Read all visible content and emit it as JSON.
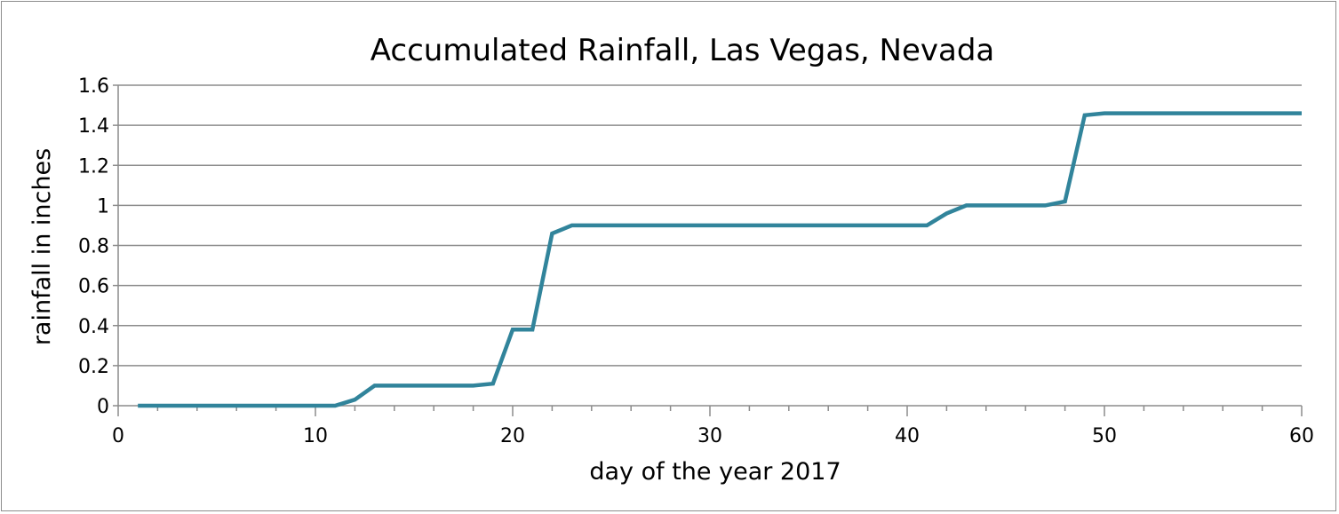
{
  "chart_data": {
    "type": "line",
    "title": "Accumulated Rainfall, Las Vegas, Nevada",
    "xlabel": "day of the year 2017",
    "ylabel": "rainfall in inches",
    "xlim": [
      0,
      60
    ],
    "ylim": [
      0,
      1.6
    ],
    "xticks": [
      0,
      10,
      20,
      30,
      40,
      50,
      60
    ],
    "yticks": [
      0,
      0.2,
      0.4,
      0.6,
      0.8,
      1,
      1.2,
      1.4,
      1.6
    ],
    "ytick_labels": [
      "0",
      "0.2",
      "0.4",
      "0.6",
      "0.8",
      "1",
      "1.2",
      "1.4",
      "1.6"
    ],
    "grid": "horizontal",
    "line_color": "#31849B",
    "x": [
      1,
      2,
      3,
      4,
      5,
      6,
      7,
      8,
      9,
      10,
      11,
      12,
      13,
      14,
      15,
      16,
      17,
      18,
      19,
      20,
      21,
      22,
      23,
      24,
      25,
      26,
      27,
      28,
      29,
      30,
      31,
      32,
      33,
      34,
      35,
      36,
      37,
      38,
      39,
      40,
      41,
      42,
      43,
      44,
      45,
      46,
      47,
      48,
      49,
      50,
      51,
      52,
      53,
      54,
      55,
      56,
      57,
      58,
      59,
      60
    ],
    "y": [
      0,
      0,
      0,
      0,
      0,
      0,
      0,
      0,
      0,
      0,
      0,
      0.03,
      0.1,
      0.1,
      0.1,
      0.1,
      0.1,
      0.1,
      0.11,
      0.38,
      0.38,
      0.86,
      0.9,
      0.9,
      0.9,
      0.9,
      0.9,
      0.9,
      0.9,
      0.9,
      0.9,
      0.9,
      0.9,
      0.9,
      0.9,
      0.9,
      0.9,
      0.9,
      0.9,
      0.9,
      0.9,
      0.96,
      1.0,
      1.0,
      1.0,
      1.0,
      1.0,
      1.02,
      1.45,
      1.46,
      1.46,
      1.46,
      1.46,
      1.46,
      1.46,
      1.46,
      1.46,
      1.46,
      1.46,
      1.46
    ]
  }
}
